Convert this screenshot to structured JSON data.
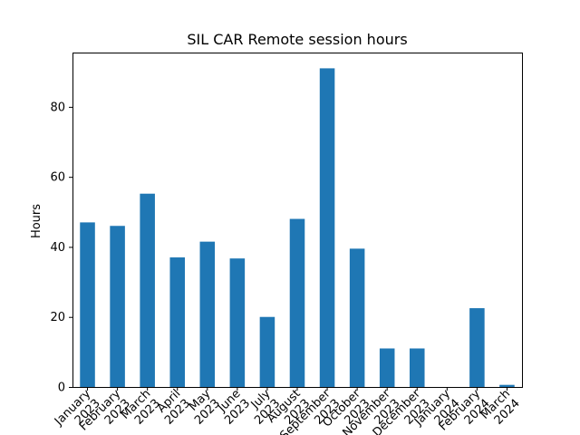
{
  "chart_data": {
    "type": "bar",
    "title": "SIL CAR Remote session hours",
    "xlabel": "",
    "ylabel": "Hours",
    "categories": [
      [
        "January",
        "2023"
      ],
      [
        "February",
        "2023"
      ],
      [
        "March",
        "2023"
      ],
      [
        "April",
        "2023"
      ],
      [
        "May",
        "2023"
      ],
      [
        "June",
        "2023"
      ],
      [
        "July",
        "2023"
      ],
      [
        "August",
        "2023"
      ],
      [
        "September",
        "2023"
      ],
      [
        "October",
        "2023"
      ],
      [
        "November",
        "2023"
      ],
      [
        "December",
        "2023"
      ],
      [
        "January",
        "2024"
      ],
      [
        "February",
        "2024"
      ],
      [
        "March",
        "2024"
      ]
    ],
    "values": [
      47,
      46,
      55.2,
      37,
      41.5,
      36.7,
      20,
      48,
      91,
      39.5,
      11,
      11,
      0,
      22.5,
      0.6
    ],
    "ylim": [
      0,
      95.5
    ],
    "yticks": [
      0,
      20,
      40,
      60,
      80
    ],
    "bar_color": "#1f77b4",
    "grid": false,
    "legend": "none"
  }
}
